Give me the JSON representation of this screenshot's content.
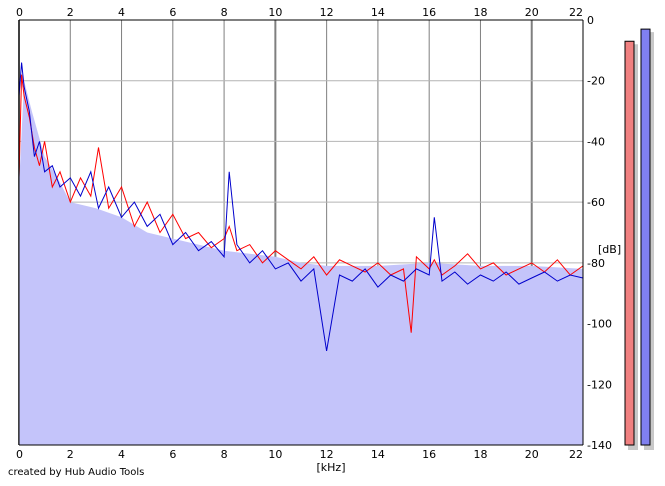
{
  "chart_data": {
    "type": "area",
    "title": "",
    "xlabel": "[kHz]",
    "ylabel": "[dB]",
    "xlim": [
      0,
      22
    ],
    "ylim": [
      -140,
      0
    ],
    "x_ticks": [
      "0",
      "2",
      "4",
      "6",
      "8",
      "10",
      "12",
      "14",
      "16",
      "18",
      "20",
      "22"
    ],
    "y_ticks": [
      "0",
      "-20",
      "-40",
      "-60",
      "-80",
      "-100",
      "-120",
      "-140"
    ],
    "grid": true,
    "series": [
      {
        "kind": "filled-area",
        "color": "#c4c4fa",
        "x": [
          0,
          0.2,
          0.5,
          1,
          1.5,
          2,
          3,
          4,
          5,
          6,
          7,
          8,
          9,
          10,
          11,
          12,
          14,
          16,
          18,
          20,
          22
        ],
        "y": [
          -55,
          -20,
          -30,
          -45,
          -52,
          -60,
          -62,
          -65,
          -70,
          -72,
          -74,
          -76,
          -77,
          -78,
          -80,
          -81,
          -81,
          -80,
          -81,
          -81,
          -82
        ]
      },
      {
        "kind": "line",
        "color": "#ff0000",
        "x": [
          0,
          0.1,
          0.2,
          0.4,
          0.6,
          0.8,
          1.0,
          1.3,
          1.6,
          2.0,
          2.4,
          2.8,
          3.1,
          3.5,
          4.0,
          4.5,
          5.0,
          5.5,
          6.0,
          6.5,
          7.0,
          7.5,
          8.0,
          8.2,
          8.5,
          9.0,
          9.5,
          10.0,
          10.5,
          11.0,
          11.5,
          12.0,
          12.5,
          13.0,
          13.5,
          14.0,
          14.5,
          15.0,
          15.3,
          15.5,
          16.0,
          16.2,
          16.5,
          17.0,
          17.5,
          18.0,
          18.5,
          19.0,
          19.5,
          20.0,
          20.5,
          21.0,
          21.5,
          22.0
        ],
        "y": [
          -52,
          -18,
          -25,
          -32,
          -42,
          -48,
          -40,
          -55,
          -50,
          -60,
          -52,
          -58,
          -42,
          -62,
          -55,
          -68,
          -60,
          -70,
          -64,
          -72,
          -70,
          -75,
          -72,
          -68,
          -76,
          -74,
          -80,
          -76,
          -79,
          -82,
          -78,
          -84,
          -79,
          -81,
          -83,
          -80,
          -84,
          -82,
          -103,
          -78,
          -82,
          -79,
          -84,
          -81,
          -77,
          -82,
          -80,
          -84,
          -82,
          -80,
          -83,
          -79,
          -84,
          -81
        ]
      },
      {
        "kind": "line",
        "color": "#0000cc",
        "x": [
          0,
          0.1,
          0.2,
          0.4,
          0.6,
          0.8,
          1.0,
          1.3,
          1.6,
          2.0,
          2.4,
          2.8,
          3.1,
          3.5,
          4.0,
          4.5,
          5.0,
          5.5,
          6.0,
          6.5,
          7.0,
          7.5,
          8.0,
          8.2,
          8.5,
          9.0,
          9.5,
          10.0,
          10.5,
          11.0,
          11.5,
          12.0,
          12.5,
          13.0,
          13.5,
          14.0,
          14.5,
          15.0,
          15.5,
          16.0,
          16.2,
          16.5,
          17.0,
          17.5,
          18.0,
          18.5,
          19.0,
          19.5,
          20.0,
          20.5,
          21.0,
          21.5,
          22.0
        ],
        "y": [
          -25,
          -14,
          -22,
          -30,
          -45,
          -40,
          -50,
          -48,
          -55,
          -52,
          -58,
          -50,
          -62,
          -55,
          -65,
          -60,
          -68,
          -64,
          -74,
          -70,
          -76,
          -73,
          -78,
          -50,
          -74,
          -80,
          -76,
          -82,
          -80,
          -86,
          -82,
          -109,
          -84,
          -86,
          -82,
          -88,
          -84,
          -86,
          -82,
          -84,
          -65,
          -86,
          -83,
          -87,
          -84,
          -86,
          -83,
          -87,
          -85,
          -83,
          -86,
          -84,
          -85
        ]
      }
    ],
    "level_meters": [
      {
        "color": "#f08080",
        "level_db": -7
      },
      {
        "color": "#8080f0",
        "level_db": -3
      }
    ]
  },
  "credit": "created by Hub Audio Tools"
}
